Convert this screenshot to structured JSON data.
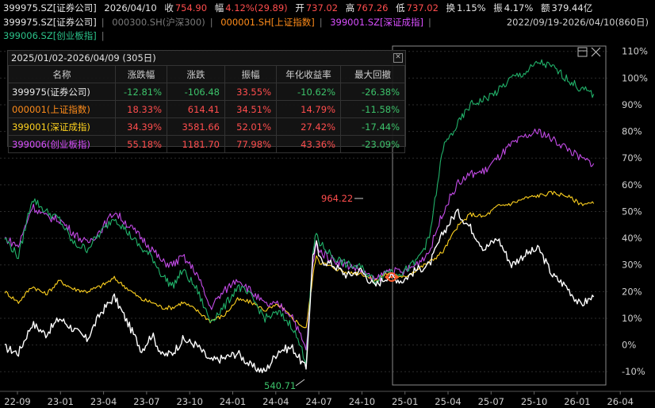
{
  "header": {
    "code": "399975.SZ[证券公司]",
    "date": "2026/04/10",
    "close_label": "收",
    "close": "754.90",
    "chg_label": "幅",
    "chg": "4.12%(29.89)",
    "open_label": "开",
    "open": "737.02",
    "high_label": "高",
    "high": "767.26",
    "low_label": "低",
    "low": "737.02",
    "turn_label": "换",
    "turn": "1.15%",
    "amp_label": "振",
    "amp": "4.17%",
    "amt_label": "额",
    "amt": "379.44亿"
  },
  "legend": {
    "s1": "399975.SZ[证券公司]",
    "s2": "000300.SH(沪深300)",
    "s3": "000001.SH[上证指数]",
    "s4": "399001.SZ[深证成指]",
    "s5": "399006.SZ[创业板指]",
    "range": "2022/09/19-2026/04/10(860日)"
  },
  "table": {
    "title": "2025/01/02-2026/04/09 (305日)",
    "headers": [
      "名称",
      "涨跌幅",
      "涨跌",
      "振幅",
      "年化收益率",
      "最大回撤"
    ],
    "rows": [
      {
        "name": "399975(证券公司)",
        "cells": [
          "-12.81%",
          "-106.48",
          "33.55%",
          "-10.62%",
          "-26.38%"
        ],
        "color": "#e6e6e6"
      },
      {
        "name": "000001(上证指数)",
        "cells": [
          "18.33%",
          "614.41",
          "34.51%",
          "14.79%",
          "-11.58%"
        ],
        "color": "#ff8c1a"
      },
      {
        "name": "399001(深证成指)",
        "cells": [
          "34.39%",
          "3581.66",
          "52.01%",
          "27.42%",
          "-17.44%"
        ],
        "color": "#ffd21f"
      },
      {
        "name": "399006(创业板指)",
        "cells": [
          "55.18%",
          "1181.70",
          "77.98%",
          "43.36%",
          "-23.09%"
        ],
        "color": "#d94fff"
      }
    ]
  },
  "chart_data": {
    "type": "line",
    "ylim": [
      -15,
      112
    ],
    "yticks": [
      110,
      100,
      90,
      80,
      70,
      60,
      50,
      40,
      30,
      20,
      10,
      0,
      -10
    ],
    "xticks": [
      "22-09",
      "23-01",
      "23-04",
      "23-07",
      "23-10",
      "24-01",
      "24-04",
      "24-07",
      "24-10",
      "25-01",
      "25-04",
      "25-07",
      "25-10",
      "26-01",
      "26-04"
    ],
    "annotations": [
      {
        "text": "964.22"
      },
      {
        "text": "540.71"
      }
    ],
    "series": [
      {
        "name": "399975.SZ[证券公司]",
        "color": "#ffffff",
        "x": [
          0,
          20,
          40,
          60,
          80,
          100,
          120,
          140,
          160,
          180,
          200,
          215,
          230,
          245,
          260,
          280,
          300,
          320,
          340,
          360,
          380,
          400,
          420,
          440,
          450,
          455,
          460,
          480,
          500,
          520,
          540,
          560,
          580,
          600,
          620,
          640,
          660,
          680,
          700,
          720,
          740,
          760,
          780,
          800,
          820,
          840,
          860
        ],
        "y": [
          -1,
          -3,
          8,
          4,
          10,
          6,
          2,
          12,
          18,
          8,
          -2,
          4,
          -4,
          -3,
          2,
          0,
          -6,
          -5,
          -3,
          -8,
          -10,
          -2,
          -1,
          -9,
          34,
          38,
          32,
          30,
          26,
          28,
          22,
          26,
          24,
          28,
          30,
          42,
          50,
          44,
          36,
          40,
          30,
          34,
          36,
          26,
          22,
          15,
          18
        ]
      },
      {
        "name": "000001.SH[上证指数]",
        "color": "#ffd21f",
        "x": [
          0,
          20,
          40,
          60,
          80,
          100,
          120,
          140,
          160,
          180,
          200,
          215,
          230,
          245,
          260,
          280,
          300,
          320,
          340,
          360,
          380,
          400,
          420,
          440,
          450,
          455,
          460,
          480,
          500,
          520,
          540,
          560,
          580,
          600,
          620,
          640,
          660,
          680,
          700,
          720,
          740,
          760,
          780,
          800,
          820,
          840,
          860
        ],
        "y": [
          20,
          16,
          22,
          19,
          24,
          21,
          20,
          22,
          25,
          21,
          17,
          16,
          14,
          14,
          16,
          13,
          9,
          11,
          17,
          16,
          13,
          15,
          10,
          6,
          26,
          34,
          31,
          29,
          27,
          27,
          24,
          27,
          25,
          28,
          31,
          35,
          44,
          49,
          48,
          52,
          53,
          55,
          56,
          57,
          56,
          53,
          53
        ]
      },
      {
        "name": "399001.SZ[深证成指]",
        "color": "#21b26a",
        "x": [
          0,
          20,
          40,
          60,
          80,
          100,
          120,
          140,
          160,
          180,
          200,
          215,
          230,
          245,
          260,
          280,
          300,
          320,
          340,
          360,
          380,
          400,
          420,
          440,
          450,
          455,
          460,
          480,
          500,
          520,
          540,
          560,
          580,
          600,
          620,
          640,
          660,
          680,
          700,
          720,
          740,
          760,
          780,
          800,
          820,
          840,
          860
        ],
        "y": [
          40,
          33,
          55,
          50,
          47,
          38,
          36,
          42,
          48,
          42,
          36,
          33,
          26,
          22,
          28,
          21,
          9,
          14,
          22,
          18,
          10,
          12,
          7,
          -6,
          34,
          42,
          38,
          33,
          30,
          29,
          24,
          28,
          27,
          31,
          40,
          74,
          82,
          90,
          92,
          95,
          100,
          102,
          106,
          104,
          100,
          96,
          94
        ]
      },
      {
        "name": "399006.SZ[创业板指]",
        "color": "#c44be8",
        "x": [
          0,
          20,
          40,
          60,
          80,
          100,
          120,
          140,
          160,
          180,
          200,
          215,
          230,
          245,
          260,
          280,
          300,
          320,
          340,
          360,
          380,
          400,
          420,
          440,
          450,
          455,
          460,
          480,
          500,
          520,
          540,
          560,
          580,
          600,
          620,
          640,
          660,
          680,
          700,
          720,
          740,
          760,
          780,
          800,
          820,
          840,
          860
        ],
        "y": [
          40,
          37,
          52,
          48,
          47,
          42,
          38,
          43,
          50,
          45,
          40,
          36,
          31,
          30,
          33,
          27,
          14,
          20,
          25,
          20,
          15,
          15,
          11,
          -2,
          30,
          38,
          35,
          32,
          30,
          28,
          24,
          28,
          27,
          30,
          35,
          50,
          60,
          64,
          65,
          70,
          75,
          78,
          80,
          77,
          74,
          70,
          68
        ]
      }
    ]
  }
}
